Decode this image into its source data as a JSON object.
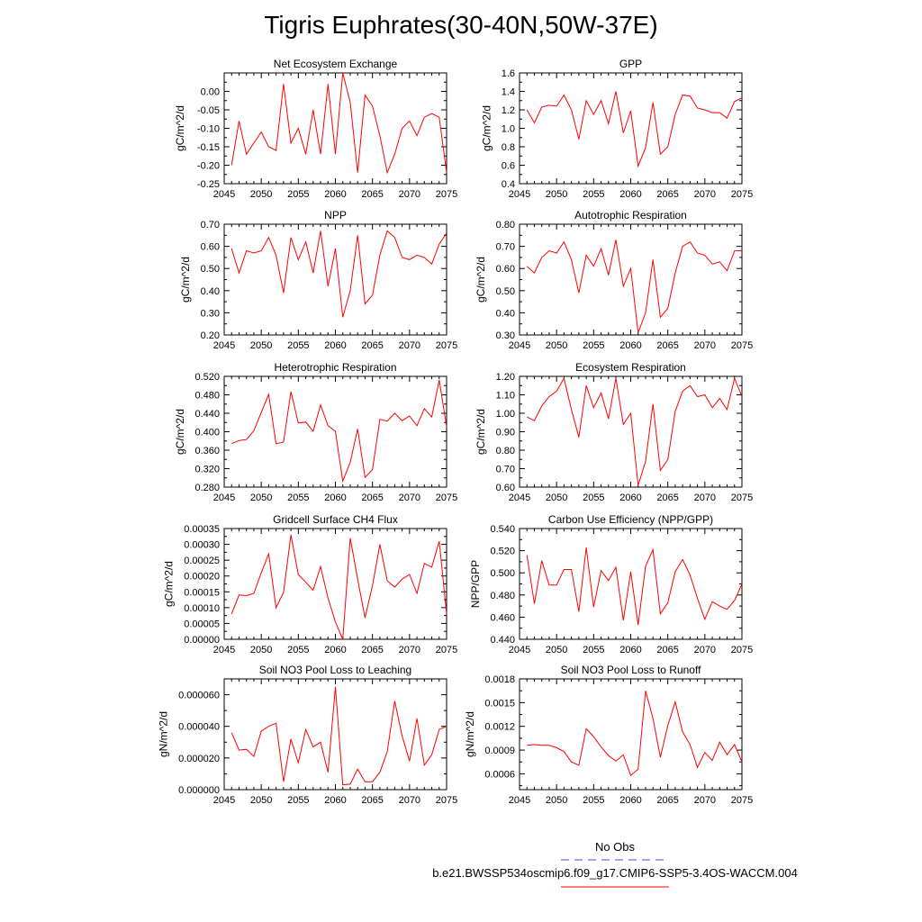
{
  "figure_title": "Tigris Euphrates(30-40N,50W-37E)",
  "legend": {
    "obs_label": "No Obs",
    "model_label": "b.e21.BWSSP534oscmip6.f09_g17.CMIP6-SSP5-3.4OS-WACCM.004",
    "obs_color": "#4b4bd6",
    "model_color": "#ff0000"
  },
  "line_color": "#ff0000",
  "chart_data": [
    {
      "type": "line",
      "title": "Net Ecosystem Exchange",
      "xlabel": "",
      "ylabel": "gC/m^2/d",
      "xlim": [
        2045,
        2075
      ],
      "ylim": [
        -0.25,
        0.05
      ],
      "xticks": [
        "2045",
        "2050",
        "2055",
        "2060",
        "2065",
        "2070",
        "2075"
      ],
      "yticks": [
        "-0.25",
        "-0.20",
        "-0.15",
        "-0.10",
        "-0.05",
        "0.00"
      ],
      "x": [
        2046,
        2047,
        2048,
        2049,
        2050,
        2051,
        2052,
        2053,
        2054,
        2055,
        2056,
        2057,
        2058,
        2059,
        2060,
        2061,
        2062,
        2063,
        2064,
        2065,
        2066,
        2067,
        2068,
        2069,
        2070,
        2071,
        2072,
        2073,
        2074,
        2075
      ],
      "values": [
        -0.2,
        -0.08,
        -0.17,
        -0.14,
        -0.11,
        -0.15,
        -0.16,
        0.02,
        -0.14,
        -0.1,
        -0.17,
        -0.05,
        -0.17,
        0.02,
        -0.17,
        0.05,
        -0.03,
        -0.22,
        -0.01,
        -0.04,
        -0.12,
        -0.22,
        -0.17,
        -0.1,
        -0.08,
        -0.12,
        -0.07,
        -0.06,
        -0.07,
        -0.22
      ]
    },
    {
      "type": "line",
      "title": "GPP",
      "xlabel": "",
      "ylabel": "gC/m^2/d",
      "xlim": [
        2045,
        2075
      ],
      "ylim": [
        0.4,
        1.6
      ],
      "xticks": [
        "2045",
        "2050",
        "2055",
        "2060",
        "2065",
        "2070",
        "2075"
      ],
      "yticks": [
        "0.4",
        "0.6",
        "0.8",
        "1.0",
        "1.2",
        "1.4",
        "1.6"
      ],
      "x": [
        2046,
        2047,
        2048,
        2049,
        2050,
        2051,
        2052,
        2053,
        2054,
        2055,
        2056,
        2057,
        2058,
        2059,
        2060,
        2061,
        2062,
        2063,
        2064,
        2065,
        2066,
        2067,
        2068,
        2069,
        2070,
        2071,
        2072,
        2073,
        2074,
        2075
      ],
      "values": [
        1.2,
        1.06,
        1.23,
        1.25,
        1.24,
        1.36,
        1.2,
        0.88,
        1.3,
        1.15,
        1.3,
        1.05,
        1.4,
        0.95,
        1.19,
        0.59,
        0.79,
        1.28,
        0.72,
        0.8,
        1.15,
        1.36,
        1.35,
        1.22,
        1.2,
        1.17,
        1.17,
        1.11,
        1.29,
        1.33
      ]
    },
    {
      "type": "line",
      "title": "NPP",
      "xlabel": "",
      "ylabel": "gC/m^2/d",
      "xlim": [
        2045,
        2075
      ],
      "ylim": [
        0.2,
        0.7
      ],
      "xticks": [
        "2045",
        "2050",
        "2055",
        "2060",
        "2065",
        "2070",
        "2075"
      ],
      "yticks": [
        "0.20",
        "0.30",
        "0.40",
        "0.50",
        "0.60",
        "0.70"
      ],
      "x": [
        2046,
        2047,
        2048,
        2049,
        2050,
        2051,
        2052,
        2053,
        2054,
        2055,
        2056,
        2057,
        2058,
        2059,
        2060,
        2061,
        2062,
        2063,
        2064,
        2065,
        2066,
        2067,
        2068,
        2069,
        2070,
        2071,
        2072,
        2073,
        2074,
        2075
      ],
      "values": [
        0.59,
        0.48,
        0.58,
        0.57,
        0.58,
        0.64,
        0.56,
        0.39,
        0.64,
        0.54,
        0.62,
        0.48,
        0.67,
        0.42,
        0.59,
        0.28,
        0.4,
        0.65,
        0.34,
        0.38,
        0.56,
        0.67,
        0.64,
        0.55,
        0.54,
        0.56,
        0.55,
        0.52,
        0.61,
        0.66
      ]
    },
    {
      "type": "line",
      "title": "Autotrophic Respiration",
      "xlabel": "",
      "ylabel": "gC/m^2/d",
      "xlim": [
        2045,
        2075
      ],
      "ylim": [
        0.3,
        0.8
      ],
      "xticks": [
        "2045",
        "2050",
        "2055",
        "2060",
        "2065",
        "2070",
        "2075"
      ],
      "yticks": [
        "0.30",
        "0.40",
        "0.50",
        "0.60",
        "0.70",
        "0.80"
      ],
      "x": [
        2046,
        2047,
        2048,
        2049,
        2050,
        2051,
        2052,
        2053,
        2054,
        2055,
        2056,
        2057,
        2058,
        2059,
        2060,
        2061,
        2062,
        2063,
        2064,
        2065,
        2066,
        2067,
        2068,
        2069,
        2070,
        2071,
        2072,
        2073,
        2074,
        2075
      ],
      "values": [
        0.61,
        0.58,
        0.65,
        0.68,
        0.67,
        0.72,
        0.64,
        0.49,
        0.66,
        0.61,
        0.69,
        0.57,
        0.73,
        0.52,
        0.6,
        0.31,
        0.4,
        0.64,
        0.38,
        0.42,
        0.58,
        0.7,
        0.72,
        0.67,
        0.66,
        0.62,
        0.63,
        0.59,
        0.68,
        0.68
      ]
    },
    {
      "type": "line",
      "title": "Heterotrophic Respiration",
      "xlabel": "",
      "ylabel": "gC/m^2/d",
      "xlim": [
        2045,
        2075
      ],
      "ylim": [
        0.28,
        0.52
      ],
      "xticks": [
        "2045",
        "2050",
        "2055",
        "2060",
        "2065",
        "2070",
        "2075"
      ],
      "yticks": [
        "0.280",
        "0.320",
        "0.360",
        "0.400",
        "0.440",
        "0.480",
        "0.520"
      ],
      "x": [
        2046,
        2047,
        2048,
        2049,
        2050,
        2051,
        2052,
        2053,
        2054,
        2055,
        2056,
        2057,
        2058,
        2059,
        2060,
        2061,
        2062,
        2063,
        2064,
        2065,
        2066,
        2067,
        2068,
        2069,
        2070,
        2071,
        2072,
        2073,
        2074,
        2075
      ],
      "values": [
        0.374,
        0.381,
        0.383,
        0.402,
        0.442,
        0.481,
        0.374,
        0.378,
        0.487,
        0.419,
        0.421,
        0.401,
        0.458,
        0.413,
        0.401,
        0.293,
        0.334,
        0.406,
        0.301,
        0.318,
        0.427,
        0.423,
        0.44,
        0.424,
        0.434,
        0.413,
        0.45,
        0.432,
        0.512,
        0.411
      ]
    },
    {
      "type": "line",
      "title": "Ecosystem Respiration",
      "xlabel": "",
      "ylabel": "gC/m^2/d",
      "xlim": [
        2045,
        2075
      ],
      "ylim": [
        0.6,
        1.2
      ],
      "xticks": [
        "2045",
        "2050",
        "2055",
        "2060",
        "2065",
        "2070",
        "2075"
      ],
      "yticks": [
        "0.60",
        "0.70",
        "0.80",
        "0.90",
        "1.00",
        "1.10",
        "1.20"
      ],
      "x": [
        2046,
        2047,
        2048,
        2049,
        2050,
        2051,
        2052,
        2053,
        2054,
        2055,
        2056,
        2057,
        2058,
        2059,
        2060,
        2061,
        2062,
        2063,
        2064,
        2065,
        2066,
        2067,
        2068,
        2069,
        2070,
        2071,
        2072,
        2073,
        2074,
        2075
      ],
      "values": [
        0.98,
        0.96,
        1.04,
        1.09,
        1.12,
        1.19,
        1.02,
        0.87,
        1.15,
        1.03,
        1.11,
        0.97,
        1.19,
        0.94,
        1.0,
        0.61,
        0.74,
        1.05,
        0.69,
        0.75,
        1.01,
        1.12,
        1.15,
        1.09,
        1.1,
        1.03,
        1.08,
        1.02,
        1.19,
        1.09
      ]
    },
    {
      "type": "line",
      "title": "Gridcell Surface CH4 Flux",
      "xlabel": "",
      "ylabel": "gC/m^2/d",
      "xlim": [
        2045,
        2075
      ],
      "ylim": [
        0,
        0.00035
      ],
      "xticks": [
        "2045",
        "2050",
        "2055",
        "2060",
        "2065",
        "2070",
        "2075"
      ],
      "yticks": [
        "0.00000",
        "0.00005",
        "0.00010",
        "0.00015",
        "0.00020",
        "0.00025",
        "0.00030",
        "0.00035"
      ],
      "x": [
        2046,
        2047,
        2048,
        2049,
        2050,
        2051,
        2052,
        2053,
        2054,
        2055,
        2056,
        2057,
        2058,
        2059,
        2060,
        2061,
        2062,
        2063,
        2064,
        2065,
        2066,
        2067,
        2068,
        2069,
        2070,
        2071,
        2072,
        2073,
        2074,
        2075
      ],
      "values": [
        8e-05,
        0.00014,
        0.000138,
        0.000145,
        0.00021,
        0.00027,
        0.0001,
        0.000148,
        0.00033,
        0.000205,
        0.00018,
        0.000155,
        0.00023,
        0.00013,
        5.5e-05,
        0.0,
        0.00032,
        0.00019,
        6.8e-05,
        0.00017,
        0.0003,
        0.000185,
        0.000165,
        0.00019,
        0.000205,
        0.000145,
        0.00024,
        0.000228,
        0.00031,
        8e-05
      ]
    },
    {
      "type": "line",
      "title": "Carbon Use Efficiency (NPP/GPP)",
      "xlabel": "",
      "ylabel": "NPP/GPP",
      "xlim": [
        2045,
        2075
      ],
      "ylim": [
        0.44,
        0.54
      ],
      "xticks": [
        "2045",
        "2050",
        "2055",
        "2060",
        "2065",
        "2070",
        "2075"
      ],
      "yticks": [
        "0.440",
        "0.460",
        "0.480",
        "0.500",
        "0.520",
        "0.540"
      ],
      "x": [
        2046,
        2047,
        2048,
        2049,
        2050,
        2051,
        2052,
        2053,
        2054,
        2055,
        2056,
        2057,
        2058,
        2059,
        2060,
        2061,
        2062,
        2063,
        2064,
        2065,
        2066,
        2067,
        2068,
        2069,
        2070,
        2071,
        2072,
        2073,
        2074,
        2075
      ],
      "values": [
        0.516,
        0.472,
        0.511,
        0.489,
        0.489,
        0.503,
        0.503,
        0.465,
        0.523,
        0.469,
        0.502,
        0.493,
        0.505,
        0.457,
        0.501,
        0.453,
        0.506,
        0.521,
        0.463,
        0.473,
        0.501,
        0.512,
        0.498,
        0.477,
        0.458,
        0.474,
        0.47,
        0.467,
        0.475,
        0.49
      ]
    },
    {
      "type": "line",
      "title": "Soil NO3 Pool Loss to Leaching",
      "xlabel": "",
      "ylabel": "gN/m^2/d",
      "xlim": [
        2045,
        2075
      ],
      "ylim": [
        0,
        7e-05
      ],
      "xticks": [
        "2045",
        "2050",
        "2055",
        "2060",
        "2065",
        "2070",
        "2075"
      ],
      "yticks": [
        "0.000000",
        "0.000020",
        "0.000040",
        "0.000060"
      ],
      "x": [
        2046,
        2047,
        2048,
        2049,
        2050,
        2051,
        2052,
        2053,
        2054,
        2055,
        2056,
        2057,
        2058,
        2059,
        2060,
        2061,
        2062,
        2063,
        2064,
        2065,
        2066,
        2067,
        2068,
        2069,
        2070,
        2071,
        2072,
        2073,
        2074,
        2075
      ],
      "values": [
        3.6e-05,
        2.5e-05,
        2.55e-05,
        2.1e-05,
        3.7e-05,
        4e-05,
        4.2e-05,
        5e-06,
        3.2e-05,
        1.7e-05,
        3.8e-05,
        2.7e-05,
        3e-05,
        1.1e-05,
        6.5e-05,
        3e-06,
        3.5e-06,
        1.3e-05,
        5e-06,
        5e-06,
        1.1e-05,
        2.4e-05,
        5.6e-05,
        3.4e-05,
        1.8e-05,
        4.5e-05,
        1.55e-05,
        2.2e-05,
        3.8e-05,
        4e-05
      ]
    },
    {
      "type": "line",
      "title": "Soil NO3 Pool Loss to Runoff",
      "xlabel": "",
      "ylabel": "gN/m^2/d",
      "xlim": [
        2045,
        2075
      ],
      "ylim": [
        0.0004,
        0.0018
      ],
      "xticks": [
        "2045",
        "2050",
        "2055",
        "2060",
        "2065",
        "2070",
        "2075"
      ],
      "yticks": [
        "0.0006",
        "0.0009",
        "0.0012",
        "0.0015",
        "0.0018"
      ],
      "x": [
        2046,
        2047,
        2048,
        2049,
        2050,
        2051,
        2052,
        2053,
        2054,
        2055,
        2056,
        2057,
        2058,
        2059,
        2060,
        2061,
        2062,
        2063,
        2064,
        2065,
        2066,
        2067,
        2068,
        2069,
        2070,
        2071,
        2072,
        2073,
        2074,
        2075
      ],
      "values": [
        0.00096,
        0.00097,
        0.00096,
        0.00096,
        0.00093,
        0.00088,
        0.00075,
        0.00071,
        0.00117,
        0.00107,
        0.00094,
        0.00083,
        0.00076,
        0.00084,
        0.00058,
        0.00066,
        0.00165,
        0.0013,
        0.00081,
        0.00121,
        0.00151,
        0.00113,
        0.00097,
        0.00068,
        0.00087,
        0.00077,
        0.001,
        0.00084,
        0.00097,
        0.00075
      ]
    }
  ]
}
